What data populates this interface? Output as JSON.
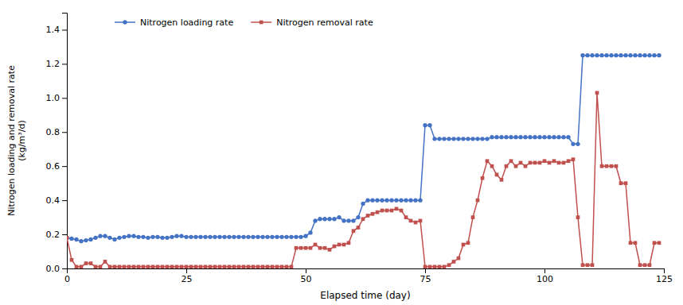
{
  "chart_data": {
    "type": "line",
    "xlabel": "Elapsed time (day)",
    "ylabel": "Nitrogen loading and removal rate\n(kg/m³/d)",
    "xlim": [
      0,
      125
    ],
    "ylim": [
      0,
      1.5
    ],
    "xticks": [
      0,
      25,
      50,
      75,
      100,
      125
    ],
    "yticks": [
      {
        "value": 0.0,
        "label": "0.0"
      },
      0.2,
      0.4,
      0.6,
      0.8,
      {
        "value": 1.0,
        "label": "1.0"
      },
      1.2,
      1.4
    ],
    "grid": false,
    "legend": "upper left",
    "x": [
      0,
      1,
      2,
      3,
      4,
      5,
      6,
      7,
      8,
      9,
      10,
      11,
      12,
      13,
      14,
      15,
      16,
      17,
      18,
      19,
      20,
      21,
      22,
      23,
      24,
      25,
      26,
      27,
      28,
      29,
      30,
      31,
      32,
      33,
      34,
      35,
      36,
      37,
      38,
      39,
      40,
      41,
      42,
      43,
      44,
      45,
      46,
      47,
      48,
      49,
      50,
      51,
      52,
      53,
      54,
      55,
      56,
      57,
      58,
      59,
      60,
      61,
      62,
      63,
      64,
      65,
      66,
      67,
      68,
      69,
      70,
      71,
      72,
      73,
      74,
      75,
      76,
      77,
      78,
      79,
      80,
      81,
      82,
      83,
      84,
      85,
      86,
      87,
      88,
      89,
      90,
      91,
      92,
      93,
      94,
      95,
      96,
      97,
      98,
      99,
      100,
      101,
      102,
      103,
      104,
      105,
      106,
      107,
      108,
      109,
      110,
      111,
      112,
      113,
      114,
      115,
      116,
      117,
      118,
      119,
      120,
      121,
      122,
      123,
      124
    ],
    "series": [
      {
        "name": "Nitrogen loading rate",
        "color": "#4472C4",
        "marker": "circle",
        "line_style": "solid",
        "values": [
          0.18,
          0.175,
          0.17,
          0.16,
          0.165,
          0.17,
          0.18,
          0.19,
          0.19,
          0.18,
          0.17,
          0.18,
          0.185,
          0.19,
          0.19,
          0.185,
          0.185,
          0.18,
          0.185,
          0.185,
          0.18,
          0.18,
          0.185,
          0.19,
          0.19,
          0.185,
          0.185,
          0.185,
          0.185,
          0.185,
          0.185,
          0.185,
          0.185,
          0.185,
          0.185,
          0.185,
          0.185,
          0.185,
          0.185,
          0.185,
          0.185,
          0.185,
          0.185,
          0.185,
          0.185,
          0.185,
          0.185,
          0.185,
          0.185,
          0.185,
          0.19,
          0.21,
          0.28,
          0.29,
          0.29,
          0.29,
          0.29,
          0.3,
          0.28,
          0.28,
          0.28,
          0.3,
          0.38,
          0.4,
          0.4,
          0.4,
          0.4,
          0.4,
          0.4,
          0.4,
          0.4,
          0.4,
          0.4,
          0.4,
          0.4,
          0.84,
          0.84,
          0.76,
          0.76,
          0.76,
          0.76,
          0.76,
          0.76,
          0.76,
          0.76,
          0.76,
          0.76,
          0.76,
          0.76,
          0.77,
          0.77,
          0.77,
          0.77,
          0.77,
          0.77,
          0.77,
          0.77,
          0.77,
          0.77,
          0.77,
          0.77,
          0.77,
          0.77,
          0.77,
          0.77,
          0.77,
          0.73,
          0.73,
          1.25,
          1.25,
          1.25,
          1.25,
          1.25,
          1.25,
          1.25,
          1.25,
          1.25,
          1.25,
          1.25,
          1.25,
          1.25,
          1.25,
          1.25,
          1.25,
          1.25
        ]
      },
      {
        "name": "Nitrogen removal rate",
        "color": "#C0504D",
        "marker": "square",
        "line_style": "solid",
        "values": [
          0.18,
          0.05,
          0.01,
          0.01,
          0.03,
          0.03,
          0.01,
          0.01,
          0.04,
          0.01,
          0.01,
          0.01,
          0.01,
          0.01,
          0.01,
          0.01,
          0.01,
          0.01,
          0.01,
          0.01,
          0.01,
          0.01,
          0.01,
          0.01,
          0.01,
          0.01,
          0.01,
          0.01,
          0.01,
          0.01,
          0.01,
          0.01,
          0.01,
          0.01,
          0.01,
          0.01,
          0.01,
          0.01,
          0.01,
          0.01,
          0.01,
          0.01,
          0.01,
          0.01,
          0.01,
          0.01,
          0.01,
          0.01,
          0.12,
          0.12,
          0.12,
          0.12,
          0.14,
          0.12,
          0.12,
          0.11,
          0.13,
          0.14,
          0.14,
          0.15,
          0.22,
          0.24,
          0.29,
          0.31,
          0.32,
          0.33,
          0.34,
          0.34,
          0.34,
          0.35,
          0.34,
          0.3,
          0.28,
          0.27,
          0.28,
          0.01,
          0.01,
          0.01,
          0.01,
          0.01,
          0.02,
          0.04,
          0.06,
          0.14,
          0.15,
          0.3,
          0.4,
          0.53,
          0.63,
          0.6,
          0.55,
          0.52,
          0.6,
          0.63,
          0.6,
          0.62,
          0.6,
          0.62,
          0.62,
          0.62,
          0.63,
          0.62,
          0.63,
          0.62,
          0.62,
          0.63,
          0.64,
          0.3,
          0.02,
          0.02,
          0.02,
          1.03,
          0.6,
          0.6,
          0.6,
          0.6,
          0.5,
          0.5,
          0.15,
          0.15,
          0.02,
          0.02,
          0.02,
          0.15,
          0.15
        ]
      }
    ]
  }
}
